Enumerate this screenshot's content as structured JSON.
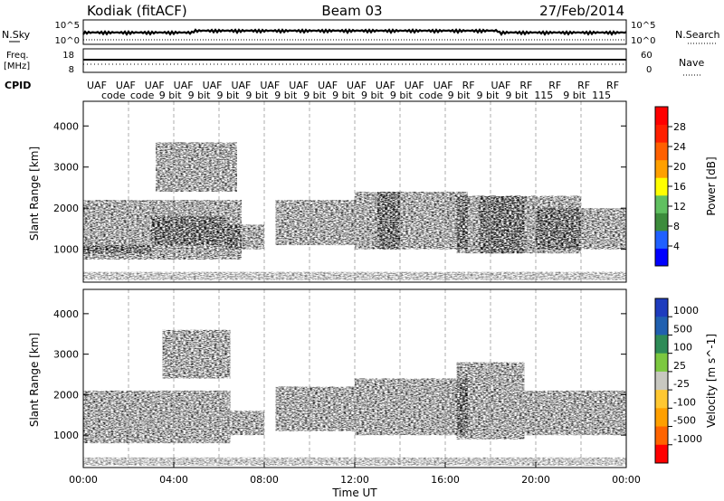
{
  "header": {
    "station": "Kodiak (fitACF)",
    "beam": "Beam 03",
    "date": "27/Feb/2014"
  },
  "top_panels": {
    "nsky_label": "N.Sky",
    "nsearch_label": "N.Search",
    "noise_ticks": [
      "10^5",
      "10^0"
    ],
    "freq_label_line1": "Freq.",
    "freq_label_line2": "[MHz]",
    "freq_ticks_left": [
      "18",
      "8"
    ],
    "nave_ticks_right": [
      "60",
      "0"
    ],
    "nave_label": "Nave",
    "cpid_label": "CPID",
    "cpid_names": [
      "UAF",
      "code",
      "UAF",
      "code",
      "UAF",
      "9 bit",
      "UAF",
      "9 bit",
      "UAF",
      "9 bit",
      "UAF",
      "9 bit",
      "UAF",
      "9 bit",
      "UAF",
      "9 bit",
      "UAF",
      "9 bit",
      "UAF",
      "9 bit",
      "UAF",
      "9 bit",
      "UAF",
      "code",
      "UAF",
      "9 bit",
      "RF",
      "9 bit",
      "UAF",
      "9 bit",
      "RF",
      "115",
      "RF",
      "9 bit",
      "RF",
      "115",
      "RF"
    ]
  },
  "x_axis": {
    "label": "Time UT",
    "ticks": [
      "00:00",
      "04:00",
      "08:00",
      "12:00",
      "16:00",
      "20:00",
      "00:00"
    ]
  },
  "power_colorbar": {
    "label": "Power [dB]",
    "ticks": [
      "28",
      "24",
      "20",
      "16",
      "12",
      "8",
      "4"
    ],
    "colors": [
      "#0000ff",
      "#2060ff",
      "#3c8c3c",
      "#60c060",
      "#ffff00",
      "#ffa000",
      "#ff6000",
      "#ff2000",
      "#ff0000"
    ]
  },
  "velocity_colorbar": {
    "label": "Velocity [m s^-1]",
    "ticks": [
      "1000",
      "500",
      "100",
      "25",
      "-25",
      "-100",
      "-500",
      "-1000"
    ],
    "colors": [
      "#1e3cbe",
      "#2060b0",
      "#2e8b57",
      "#7cc840",
      "#c8c8c0",
      "#ffc832",
      "#ffa000",
      "#ff6400",
      "#ff0000"
    ]
  },
  "chart_data": [
    {
      "type": "heatmap",
      "title": "Power",
      "ylabel": "Slant Range [km]",
      "xlabel": "Time UT",
      "x_range_hours": [
        0,
        24
      ],
      "ylim": [
        200,
        4600
      ],
      "y_ticks": [
        1000,
        2000,
        3000,
        4000
      ],
      "colorbar_range_db": [
        0,
        30
      ],
      "echo_regions": [
        {
          "t0": 0.0,
          "t1": 7.0,
          "r0": 750,
          "r1": 2200,
          "power_db": 10
        },
        {
          "t0": 0.0,
          "t1": 3.0,
          "r0": 900,
          "r1": 1100,
          "power_db": 26
        },
        {
          "t0": 3.0,
          "t1": 6.3,
          "r0": 1100,
          "r1": 1800,
          "power_db": 20
        },
        {
          "t0": 3.2,
          "t1": 6.8,
          "r0": 2400,
          "r1": 3600,
          "power_db": 8
        },
        {
          "t0": 6.3,
          "t1": 8.0,
          "r0": 1000,
          "r1": 1600,
          "power_db": 6
        },
        {
          "t0": 8.5,
          "t1": 12.0,
          "r0": 1100,
          "r1": 2200,
          "power_db": 12
        },
        {
          "t0": 12.0,
          "t1": 17.0,
          "r0": 1000,
          "r1": 2400,
          "power_db": 10
        },
        {
          "t0": 13.0,
          "t1": 14.0,
          "r0": 1000,
          "r1": 2400,
          "power_db": 28
        },
        {
          "t0": 16.5,
          "t1": 22.0,
          "r0": 900,
          "r1": 2300,
          "power_db": 12
        },
        {
          "t0": 17.5,
          "t1": 19.5,
          "r0": 900,
          "r1": 2300,
          "power_db": 28
        },
        {
          "t0": 20.0,
          "t1": 24.0,
          "r0": 1000,
          "r1": 2000,
          "power_db": 8
        }
      ]
    },
    {
      "type": "heatmap",
      "title": "Velocity",
      "ylabel": "Slant Range [km]",
      "xlabel": "Time UT",
      "x_range_hours": [
        0,
        24
      ],
      "ylim": [
        200,
        4600
      ],
      "y_ticks": [
        1000,
        2000,
        3000,
        4000
      ],
      "colorbar_range_ms": [
        -1000,
        1000
      ],
      "echo_regions": [
        {
          "t0": 0.0,
          "t1": 6.5,
          "r0": 800,
          "r1": 2100,
          "velocity_ms": 0
        },
        {
          "t0": 3.5,
          "t1": 6.5,
          "r0": 2400,
          "r1": 3600,
          "velocity_ms": 200
        },
        {
          "t0": 6.5,
          "t1": 8.0,
          "r0": 1000,
          "r1": 1600,
          "velocity_ms": 0
        },
        {
          "t0": 8.5,
          "t1": 12.0,
          "r0": 1100,
          "r1": 2200,
          "velocity_ms": -300
        },
        {
          "t0": 12.0,
          "t1": 17.0,
          "r0": 1000,
          "r1": 2400,
          "velocity_ms": -200
        },
        {
          "t0": 16.5,
          "t1": 19.5,
          "r0": 900,
          "r1": 2800,
          "velocity_ms": -400
        },
        {
          "t0": 19.5,
          "t1": 24.0,
          "r0": 1000,
          "r1": 2100,
          "velocity_ms": 0
        }
      ]
    }
  ]
}
